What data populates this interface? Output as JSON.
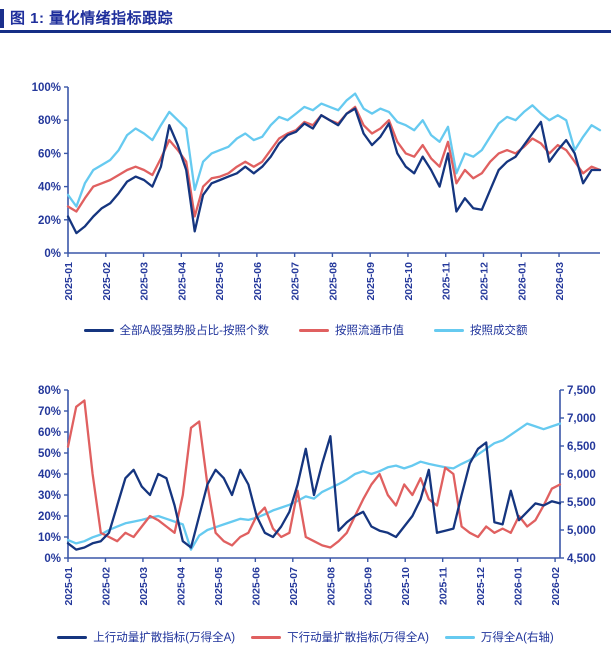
{
  "header": {
    "title": "图 1: 量化情绪指标跟踪"
  },
  "colors": {
    "title_text": "#1F2F9C",
    "title_rule": "#162E86",
    "title_accent": "#1A2F8C",
    "axis_line": "#3A57A8",
    "axis_text": "#24389B",
    "legend_text": "#1F339B",
    "navy": "#15357F",
    "red": "#E06060",
    "light_blue": "#66CAF0"
  },
  "chart_data": [
    {
      "type": "line",
      "title": "",
      "categories": [
        "2025-01",
        "2025-02",
        "2025-03",
        "2025-04",
        "2025-05",
        "2025-06",
        "2025-07",
        "2025-08",
        "2025-09",
        "2025-10",
        "2025-11",
        "2025-12",
        "2026-01",
        "2026-03"
      ],
      "left_axis": {
        "min": 0,
        "max": 100,
        "ticks": [
          "0%",
          "20%",
          "40%",
          "60%",
          "80%",
          "100%"
        ]
      },
      "grid": false,
      "legend_position": "bottom",
      "series": [
        {
          "name": "全部A股强势股占比-按照个数",
          "color": "#15357F",
          "axis": "left",
          "values": [
            22,
            12,
            16,
            22,
            27,
            30,
            36,
            43,
            46,
            44,
            40,
            52,
            77,
            65,
            50,
            13,
            35,
            42,
            44,
            46,
            48,
            52,
            48,
            52,
            58,
            66,
            71,
            73,
            78,
            75,
            83,
            80,
            77,
            84,
            87,
            72,
            65,
            70,
            78,
            60,
            52,
            48,
            58,
            50,
            40,
            60,
            25,
            33,
            27,
            26,
            38,
            50,
            55,
            58,
            65,
            72,
            79,
            55,
            62,
            68,
            60,
            42,
            50,
            50
          ]
        },
        {
          "name": "按照流通市值",
          "color": "#E06060",
          "axis": "left",
          "values": [
            28,
            25,
            33,
            40,
            42,
            44,
            47,
            50,
            52,
            50,
            47,
            57,
            68,
            62,
            55,
            22,
            40,
            45,
            46,
            48,
            52,
            55,
            52,
            55,
            62,
            69,
            72,
            74,
            79,
            77,
            83,
            80,
            78,
            84,
            88,
            77,
            72,
            75,
            80,
            67,
            60,
            58,
            65,
            57,
            52,
            67,
            42,
            50,
            45,
            48,
            55,
            60,
            62,
            60,
            64,
            69,
            66,
            60,
            65,
            62,
            55,
            48,
            52,
            50
          ]
        },
        {
          "name": "按照成交额",
          "color": "#66CAF0",
          "axis": "left",
          "values": [
            35,
            28,
            42,
            50,
            53,
            56,
            62,
            71,
            75,
            72,
            68,
            77,
            85,
            80,
            75,
            38,
            55,
            60,
            62,
            64,
            69,
            72,
            68,
            70,
            77,
            82,
            80,
            84,
            88,
            86,
            90,
            88,
            86,
            92,
            96,
            87,
            84,
            87,
            85,
            79,
            77,
            74,
            80,
            71,
            67,
            76,
            48,
            60,
            58,
            62,
            70,
            78,
            82,
            80,
            85,
            89,
            84,
            80,
            83,
            80,
            62,
            70,
            77,
            74
          ]
        }
      ]
    },
    {
      "type": "line",
      "title": "",
      "categories": [
        "2025-01",
        "2025-02",
        "2025-03",
        "2025-04",
        "2025-05",
        "2025-06",
        "2025-07",
        "2025-08",
        "2025-09",
        "2025-10",
        "2025-11",
        "2025-12",
        "2026-01",
        "2026-02"
      ],
      "left_axis": {
        "min": 0,
        "max": 80,
        "ticks": [
          "0%",
          "10%",
          "20%",
          "30%",
          "40%",
          "50%",
          "60%",
          "70%",
          "80%"
        ]
      },
      "right_axis": {
        "min": 4500,
        "max": 7500,
        "ticks": [
          "4,500",
          "5,000",
          "5,500",
          "6,000",
          "6,500",
          "7,000",
          "7,500"
        ]
      },
      "grid": false,
      "legend_position": "bottom",
      "series": [
        {
          "name": "上行动量扩散指标(万得全A)",
          "color": "#15357F",
          "axis": "left",
          "values": [
            7,
            4,
            5,
            7,
            8,
            12,
            25,
            38,
            42,
            34,
            30,
            40,
            38,
            25,
            8,
            5,
            20,
            35,
            42,
            38,
            30,
            42,
            35,
            20,
            12,
            10,
            15,
            22,
            35,
            52,
            30,
            45,
            58,
            13,
            17,
            20,
            22,
            15,
            13,
            12,
            10,
            15,
            20,
            28,
            42,
            12,
            13,
            14,
            30,
            45,
            52,
            55,
            17,
            16,
            32,
            18,
            22,
            26,
            25,
            27,
            26
          ]
        },
        {
          "name": "下行动量扩散指标(万得全A)",
          "color": "#E06060",
          "axis": "left",
          "values": [
            53,
            72,
            75,
            40,
            12,
            10,
            8,
            12,
            10,
            15,
            20,
            18,
            15,
            12,
            30,
            62,
            65,
            35,
            12,
            8,
            6,
            10,
            12,
            20,
            24,
            14,
            10,
            12,
            32,
            10,
            8,
            6,
            5,
            8,
            12,
            20,
            28,
            35,
            40,
            30,
            25,
            35,
            30,
            38,
            28,
            25,
            43,
            40,
            15,
            12,
            10,
            15,
            12,
            14,
            12,
            20,
            15,
            18,
            25,
            33,
            35
          ]
        },
        {
          "name": "万得全A(右轴)",
          "color": "#66CAF0",
          "axis": "right",
          "values": [
            4820,
            4760,
            4800,
            4870,
            4920,
            5000,
            5060,
            5120,
            5150,
            5180,
            5220,
            5250,
            5200,
            5150,
            5100,
            4650,
            4900,
            5000,
            5050,
            5100,
            5150,
            5200,
            5180,
            5220,
            5280,
            5350,
            5400,
            5450,
            5520,
            5600,
            5560,
            5680,
            5750,
            5820,
            5900,
            6000,
            6050,
            6000,
            6050,
            6120,
            6150,
            6100,
            6150,
            6220,
            6180,
            6150,
            6120,
            6100,
            6180,
            6250,
            6350,
            6450,
            6550,
            6600,
            6700,
            6800,
            6900,
            6850,
            6800,
            6850,
            6900
          ]
        }
      ]
    }
  ]
}
